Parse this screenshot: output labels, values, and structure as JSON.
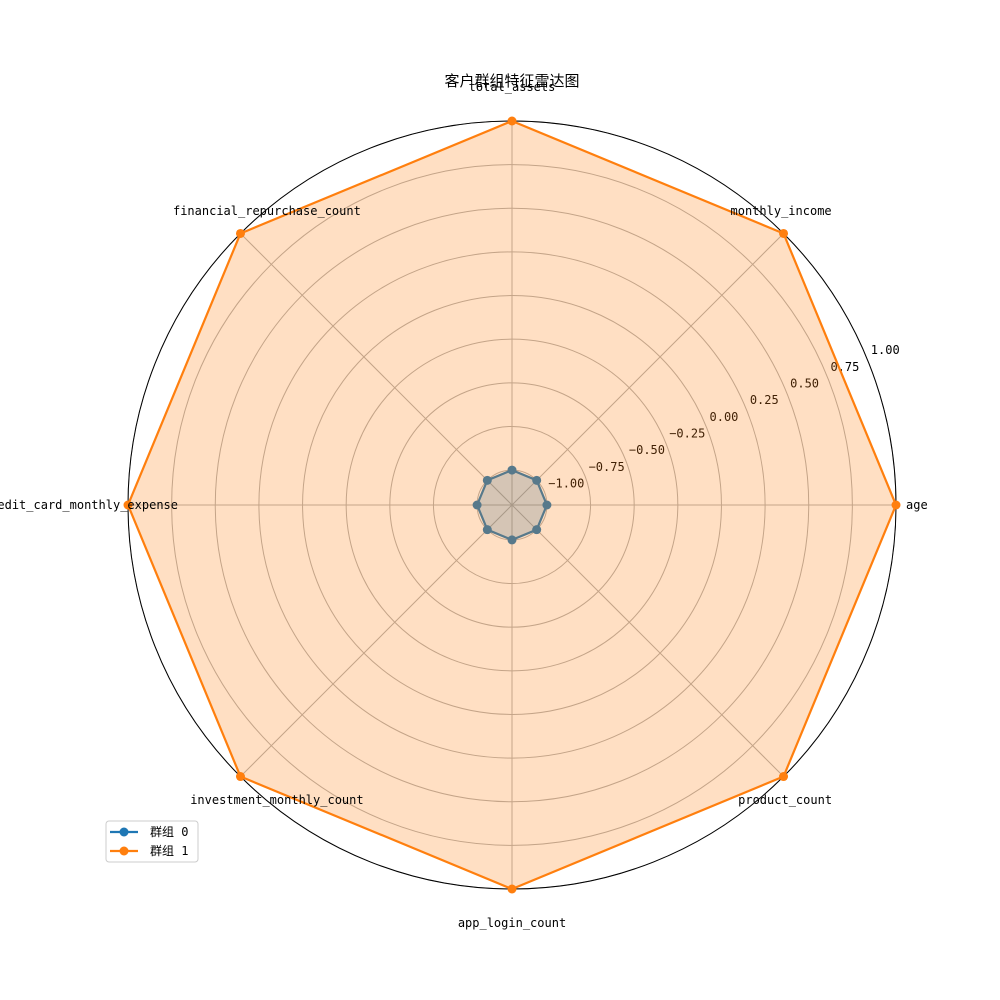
{
  "chart_data": {
    "type": "radar",
    "title": "客户群组特征雷达图",
    "categories": [
      "age",
      "monthly_income",
      "total_assets",
      "financial_repurchase_count",
      "credit_card_monthly_expense",
      "investment_monthly_count",
      "app_login_count",
      "product_count"
    ],
    "radial_ticks": [
      -1.0,
      -0.75,
      -0.5,
      -0.25,
      0.0,
      0.25,
      0.5,
      0.75,
      1.0
    ],
    "radial_tick_labels": [
      "−1.00",
      "−0.75",
      "−0.50",
      "−0.25",
      "0.00",
      "0.25",
      "0.50",
      "0.75",
      "1.00"
    ],
    "rlim": [
      -1.2,
      1.0
    ],
    "grid": true,
    "legend_position": "lower-left",
    "series": [
      {
        "name": "群组 0",
        "color": "#1f77b4",
        "values": [
          -1.0,
          -1.0,
          -1.0,
          -1.0,
          -1.0,
          -1.0,
          -1.0,
          -1.0
        ]
      },
      {
        "name": "群组 1",
        "color": "#ff7f0e",
        "values": [
          1.0,
          1.0,
          1.0,
          1.0,
          1.0,
          1.0,
          1.0,
          1.0
        ]
      }
    ]
  }
}
